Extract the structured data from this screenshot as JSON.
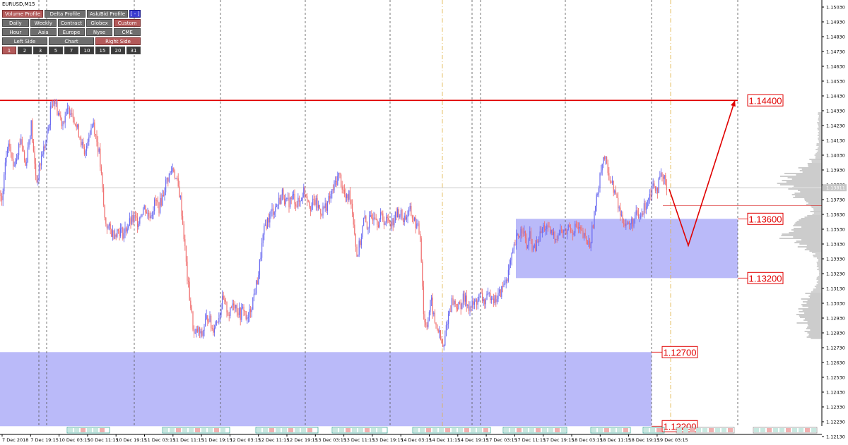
{
  "window": {
    "symbol": "EURUSD,M15"
  },
  "panel": {
    "row1": [
      {
        "label": "Volume Profile",
        "state": "active"
      },
      {
        "label": "Delta Profile",
        "state": "normal"
      },
      {
        "label": "Ask/Bid Profile",
        "state": "normal"
      },
      {
        "label": "[ - ]",
        "state": "blue"
      }
    ],
    "row2": [
      {
        "label": "Daily",
        "state": "normal"
      },
      {
        "label": "Weekly",
        "state": "normal"
      },
      {
        "label": "Contract",
        "state": "normal"
      },
      {
        "label": "Globex",
        "state": "normal"
      },
      {
        "label": "Custom",
        "state": "active"
      }
    ],
    "row3": [
      {
        "label": "Hour",
        "state": "normal"
      },
      {
        "label": "Asia",
        "state": "normal"
      },
      {
        "label": "Europe",
        "state": "normal"
      },
      {
        "label": "Nyse",
        "state": "normal"
      },
      {
        "label": "CME",
        "state": "normal"
      }
    ],
    "row4": [
      {
        "label": "Left Side",
        "state": "normal"
      },
      {
        "label": "Chart",
        "state": "normal"
      },
      {
        "label": "Right Side",
        "state": "active"
      }
    ],
    "row5": [
      {
        "label": "1",
        "state": "active"
      },
      {
        "label": "2",
        "state": "dark"
      },
      {
        "label": "3",
        "state": "dark"
      },
      {
        "label": "5",
        "state": "dark"
      },
      {
        "label": "7",
        "state": "dark"
      },
      {
        "label": "10",
        "state": "dark"
      },
      {
        "label": "15",
        "state": "dark"
      },
      {
        "label": "20",
        "state": "dark"
      },
      {
        "label": "31",
        "state": "dark"
      }
    ]
  },
  "colors": {
    "up_candle": "#6b6bf0",
    "down_candle": "#f07070",
    "zone": "#babaf9",
    "resistance_line": "#e00000",
    "arrow": "#e00000",
    "session_line": "#555555",
    "day_line": "#e0b040",
    "profile": "#9a9a9a",
    "current_price_line": "#c8c8c8"
  },
  "chart_data": {
    "type": "candlestick",
    "symbol": "EURUSD",
    "timeframe": "M15",
    "ylim": [
      1.1212,
      1.1508
    ],
    "y_ticks": [
      "1.15030",
      "1.14930",
      "1.14830",
      "1.14730",
      "1.14630",
      "1.14530",
      "1.14430",
      "1.14330",
      "1.14230",
      "1.14130",
      "1.14030",
      "1.13930",
      "1.13830",
      "1.13730",
      "1.13630",
      "1.13530",
      "1.13430",
      "1.13330",
      "1.13230",
      "1.13130",
      "1.13030",
      "1.12930",
      "1.12830",
      "1.12730",
      "1.12630",
      "1.12530",
      "1.12430",
      "1.12330",
      "1.12230",
      "1.12130"
    ],
    "x_ticks": [
      "7 Dec 2018",
      "7 Dec 19:15",
      "10 Dec 03:15",
      "10 Dec 11:15",
      "10 Dec 19:15",
      "11 Dec 03:15",
      "11 Dec 11:15",
      "11 Dec 19:15",
      "12 Dec 03:15",
      "12 Dec 11:15",
      "12 Dec 19:15",
      "13 Dec 03:15",
      "13 Dec 11:15",
      "13 Dec 19:15",
      "14 Dec 03:15",
      "14 Dec 11:15",
      "14 Dec 19:15",
      "17 Dec 03:15",
      "17 Dec 11:15",
      "17 Dec 19:15",
      "18 Dec 03:15",
      "18 Dec 11:15",
      "18 Dec 19:15",
      "19 Dec 03:15"
    ],
    "current_price": 1.1381,
    "current_price_label": "1.13811",
    "price_path": [
      [
        0,
        1.1379
      ],
      [
        3,
        1.137
      ],
      [
        8,
        1.14
      ],
      [
        14,
        1.141
      ],
      [
        18,
        1.1395
      ],
      [
        24,
        1.1405
      ],
      [
        30,
        1.1415
      ],
      [
        36,
        1.1395
      ],
      [
        40,
        1.141
      ],
      [
        44,
        1.1425
      ],
      [
        48,
        1.14
      ],
      [
        52,
        1.1385
      ],
      [
        56,
        1.1395
      ],
      [
        60,
        1.1405
      ],
      [
        64,
        1.141
      ],
      [
        68,
        1.142
      ],
      [
        72,
        1.1435
      ],
      [
        76,
        1.1442
      ],
      [
        80,
        1.1435
      ],
      [
        84,
        1.143
      ],
      [
        88,
        1.1425
      ],
      [
        92,
        1.143
      ],
      [
        96,
        1.1432
      ],
      [
        100,
        1.1435
      ],
      [
        104,
        1.143
      ],
      [
        108,
        1.1422
      ],
      [
        112,
        1.1418
      ],
      [
        116,
        1.141
      ],
      [
        120,
        1.14
      ],
      [
        124,
        1.1415
      ],
      [
        128,
        1.142
      ],
      [
        132,
        1.1426
      ],
      [
        136,
        1.1415
      ],
      [
        140,
        1.1405
      ],
      [
        144,
        1.1385
      ],
      [
        148,
        1.136
      ],
      [
        152,
        1.1355
      ],
      [
        156,
        1.1352
      ],
      [
        160,
        1.135
      ],
      [
        165,
        1.1352
      ],
      [
        170,
        1.1352
      ],
      [
        175,
        1.135
      ],
      [
        180,
        1.1355
      ],
      [
        185,
        1.1358
      ],
      [
        190,
        1.136
      ],
      [
        195,
        1.1358
      ],
      [
        200,
        1.1365
      ],
      [
        205,
        1.1368
      ],
      [
        210,
        1.1362
      ],
      [
        215,
        1.1365
      ],
      [
        220,
        1.1372
      ],
      [
        225,
        1.1368
      ],
      [
        230,
        1.1375
      ],
      [
        235,
        1.1385
      ],
      [
        240,
        1.139
      ],
      [
        245,
        1.1395
      ],
      [
        250,
        1.1385
      ],
      [
        255,
        1.1375
      ],
      [
        260,
        1.135
      ],
      [
        265,
        1.132
      ],
      [
        270,
        1.13
      ],
      [
        275,
        1.128
      ],
      [
        280,
        1.1285
      ],
      [
        285,
        1.128
      ],
      [
        290,
        1.129
      ],
      [
        295,
        1.1295
      ],
      [
        300,
        1.1285
      ],
      [
        305,
        1.129
      ],
      [
        310,
        1.1295
      ],
      [
        315,
        1.1305
      ],
      [
        320,
        1.13
      ],
      [
        325,
        1.1295
      ],
      [
        330,
        1.1305
      ],
      [
        335,
        1.13
      ],
      [
        340,
        1.1295
      ],
      [
        345,
        1.13
      ],
      [
        350,
        1.129
      ],
      [
        355,
        1.13
      ],
      [
        360,
        1.131
      ],
      [
        365,
        1.132
      ],
      [
        370,
        1.134
      ],
      [
        375,
        1.1355
      ],
      [
        380,
        1.136
      ],
      [
        385,
        1.1365
      ],
      [
        390,
        1.1368
      ],
      [
        395,
        1.1372
      ],
      [
        400,
        1.1378
      ],
      [
        405,
        1.137
      ],
      [
        410,
        1.1372
      ],
      [
        415,
        1.1375
      ],
      [
        420,
        1.137
      ],
      [
        425,
        1.1372
      ],
      [
        430,
        1.138
      ],
      [
        435,
        1.1375
      ],
      [
        440,
        1.1368
      ],
      [
        445,
        1.1372
      ],
      [
        450,
        1.1368
      ],
      [
        455,
        1.1365
      ],
      [
        460,
        1.1368
      ],
      [
        465,
        1.1372
      ],
      [
        470,
        1.1378
      ],
      [
        475,
        1.1385
      ],
      [
        480,
        1.139
      ],
      [
        485,
        1.138
      ],
      [
        490,
        1.1372
      ],
      [
        495,
        1.1378
      ],
      [
        500,
        1.136
      ],
      [
        505,
        1.1335
      ],
      [
        510,
        1.1345
      ],
      [
        515,
        1.136
      ],
      [
        520,
        1.1355
      ],
      [
        525,
        1.136
      ],
      [
        530,
        1.1365
      ],
      [
        535,
        1.1358
      ],
      [
        540,
        1.1362
      ],
      [
        545,
        1.1358
      ],
      [
        550,
        1.136
      ],
      [
        555,
        1.1358
      ],
      [
        560,
        1.1362
      ],
      [
        565,
        1.1365
      ],
      [
        570,
        1.136
      ],
      [
        575,
        1.1362
      ],
      [
        580,
        1.1365
      ],
      [
        585,
        1.136
      ],
      [
        590,
        1.1355
      ],
      [
        595,
        1.1348
      ],
      [
        600,
        1.129
      ],
      [
        605,
        1.129
      ],
      [
        610,
        1.1305
      ],
      [
        615,
        1.129
      ],
      [
        620,
        1.1285
      ],
      [
        625,
        1.1275
      ],
      [
        628,
        1.1272
      ],
      [
        632,
        1.129
      ],
      [
        636,
        1.1298
      ],
      [
        640,
        1.1305
      ],
      [
        645,
        1.1302
      ],
      [
        650,
        1.13
      ],
      [
        655,
        1.1306
      ],
      [
        660,
        1.1304
      ],
      [
        665,
        1.13
      ],
      [
        670,
        1.1302
      ],
      [
        675,
        1.1305
      ],
      [
        680,
        1.1308
      ],
      [
        685,
        1.1304
      ],
      [
        690,
        1.1306
      ],
      [
        695,
        1.131
      ],
      [
        700,
        1.1305
      ],
      [
        705,
        1.1308
      ],
      [
        710,
        1.1312
      ],
      [
        715,
        1.1318
      ],
      [
        720,
        1.1325
      ],
      [
        725,
        1.1335
      ],
      [
        730,
        1.1345
      ],
      [
        735,
        1.135
      ],
      [
        740,
        1.1355
      ],
      [
        745,
        1.134
      ],
      [
        750,
        1.1348
      ],
      [
        755,
        1.1338
      ],
      [
        760,
        1.1343
      ],
      [
        765,
        1.135
      ],
      [
        770,
        1.1355
      ],
      [
        775,
        1.1352
      ],
      [
        780,
        1.135
      ],
      [
        785,
        1.1348
      ],
      [
        790,
        1.135
      ],
      [
        795,
        1.1352
      ],
      [
        800,
        1.135
      ],
      [
        805,
        1.1355
      ],
      [
        810,
        1.1352
      ],
      [
        815,
        1.1355
      ],
      [
        820,
        1.1352
      ],
      [
        825,
        1.1348
      ],
      [
        830,
        1.1345
      ],
      [
        835,
        1.1342
      ],
      [
        840,
        1.136
      ],
      [
        845,
        1.1375
      ],
      [
        850,
        1.1395
      ],
      [
        855,
        1.1402
      ],
      [
        860,
        1.1392
      ],
      [
        865,
        1.1385
      ],
      [
        870,
        1.1378
      ],
      [
        875,
        1.1368
      ],
      [
        880,
        1.136
      ],
      [
        885,
        1.1358
      ],
      [
        890,
        1.1355
      ],
      [
        895,
        1.1358
      ],
      [
        900,
        1.1362
      ],
      [
        905,
        1.136
      ],
      [
        910,
        1.1365
      ],
      [
        915,
        1.1372
      ],
      [
        920,
        1.1378
      ],
      [
        925,
        1.1385
      ],
      [
        930,
        1.138
      ],
      [
        935,
        1.1388
      ],
      [
        940,
        1.1386
      ],
      [
        945,
        1.1382
      ]
    ],
    "zones": [
      {
        "from": 1.132,
        "to": 1.136,
        "x_start": 730,
        "x_end": 1044
      },
      {
        "from": 1.122,
        "to": 1.127,
        "x_start": 0,
        "x_end": 922
      }
    ],
    "levels": [
      {
        "price": 1.144,
        "label": "1.14400",
        "x_start": 0,
        "x_end": 1044
      },
      {
        "price": 1.136,
        "label": "1.13600"
      },
      {
        "price": 1.132,
        "label": "1.13200"
      },
      {
        "price": 1.127,
        "label": "1.12700"
      },
      {
        "price": 1.122,
        "label": "1.12200"
      }
    ],
    "arrow_path": [
      [
        947,
        1.138
      ],
      [
        974,
        1.1342
      ],
      [
        1040,
        1.144
      ]
    ],
    "vertical_lines": {
      "dashed": [
        55,
        66,
        190,
        312,
        432,
        552,
        668,
        680,
        800,
        922,
        1044
      ],
      "dashdot": [
        626,
        949
      ]
    }
  }
}
